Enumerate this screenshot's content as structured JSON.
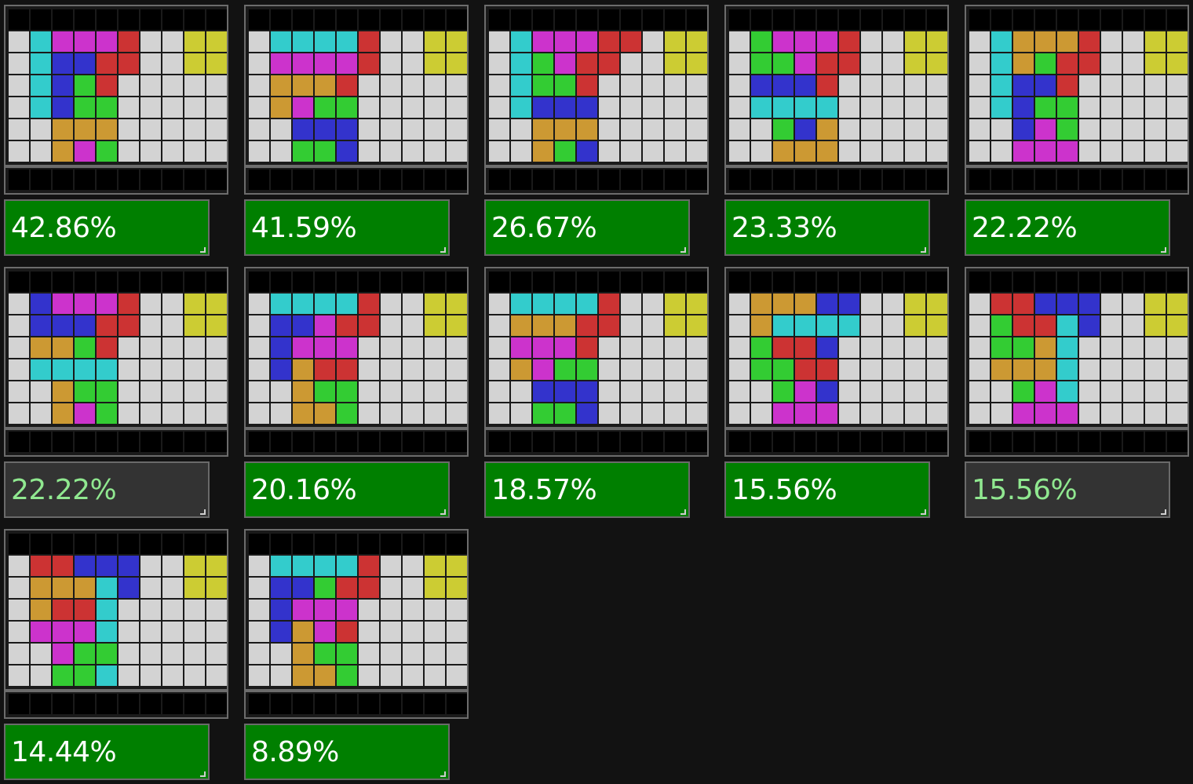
{
  "palette": {
    ".": "#d3d3d3",
    "k": "#000000",
    "c": "#33cccc",
    "m": "#cc33cc",
    "r": "#cc3333",
    "b": "#3333cc",
    "g": "#33cc33",
    "o": "#cc9933",
    "y": "#cccc33"
  },
  "status_colors": {
    "green": "#007f00",
    "gray": "#333333"
  },
  "boards": [
    {
      "score": "42.86%",
      "style": "green",
      "rows": [
        ".cmmmr..yy",
        ".cbbrr..yy",
        ".cbgr.....",
        ".cbgg.....",
        "..ooo.....",
        "..omg....."
      ]
    },
    {
      "score": "41.59%",
      "style": "green",
      "rows": [
        ".ccccr..yy",
        ".mmmmr..yy",
        ".ooor.....",
        ".omgg.....",
        "..bbb.....",
        "..ggb....."
      ]
    },
    {
      "score": "26.67%",
      "style": "green",
      "rows": [
        ".cmmmrr.yy",
        ".cgmrr..yy",
        ".cggr.....",
        ".cbbb.....",
        "..ooo.....",
        "..ogb....."
      ]
    },
    {
      "score": "23.33%",
      "style": "green",
      "rows": [
        ".gmmmr..yy",
        ".ggmrr..yy",
        ".bbbr.....",
        ".cccc.....",
        "..gbo.....",
        "..ooo....."
      ]
    },
    {
      "score": "22.22%",
      "style": "green",
      "rows": [
        ".cooor..yy",
        ".cogrr..yy",
        ".cbbr.....",
        ".cbgg.....",
        "..bmg.....",
        "..mmm....."
      ]
    },
    {
      "score": "22.22%",
      "style": "gray",
      "rows": [
        ".bmmmr..yy",
        ".bbbrr..yy",
        ".oogr.....",
        ".cccc.....",
        "..ogg.....",
        "..omg....."
      ]
    },
    {
      "score": "20.16%",
      "style": "green",
      "rows": [
        ".ccccr..yy",
        ".bbmrr..yy",
        ".bmmm.....",
        ".borr.....",
        "..ogg.....",
        "..oog....."
      ]
    },
    {
      "score": "18.57%",
      "style": "green",
      "rows": [
        ".ccccr..yy",
        ".ooorr..yy",
        ".mmmr.....",
        ".omgg.....",
        "..bbb.....",
        "..ggb....."
      ]
    },
    {
      "score": "15.56%",
      "style": "green",
      "rows": [
        ".ooobb..yy",
        ".occcc..yy",
        ".grrb.....",
        ".ggrr.....",
        "..gmb.....",
        "..mmm....."
      ]
    },
    {
      "score": "15.56%",
      "style": "gray",
      "rows": [
        ".rrbbb..yy",
        ".grrcb..yy",
        ".ggoc.....",
        ".oooc.....",
        "..gmc.....",
        "..mmm....."
      ]
    },
    {
      "score": "14.44%",
      "style": "green",
      "rows": [
        ".rrbbb..yy",
        ".ooocb..yy",
        ".orrc.....",
        ".mmmc.....",
        "..mgg.....",
        "..ggc....."
      ]
    },
    {
      "score": "8.89%",
      "style": "green",
      "rows": [
        ".ccccr..yy",
        ".bbgrr..yy",
        ".bmmm.....",
        ".bomr.....",
        "..ogg.....",
        "..oog....."
      ]
    }
  ]
}
